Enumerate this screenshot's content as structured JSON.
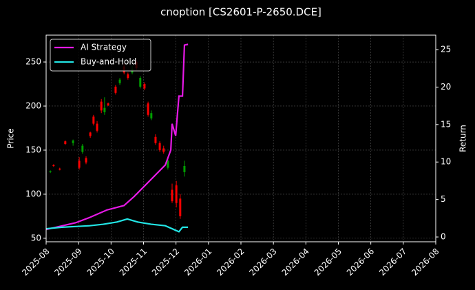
{
  "chart_data": {
    "type": "candlestick",
    "title": "cnoption [CS2601-P-2650.DCE]",
    "y_label": "Price",
    "y2_label": "Return",
    "xlim": [
      0,
      12
    ],
    "xticks": [
      {
        "value": 0,
        "label": "2025-08"
      },
      {
        "value": 1,
        "label": "2025-09"
      },
      {
        "value": 2,
        "label": "2025-10"
      },
      {
        "value": 3,
        "label": "2025-11"
      },
      {
        "value": 4,
        "label": "2025-12"
      },
      {
        "value": 5,
        "label": "2026-01"
      },
      {
        "value": 6,
        "label": "2026-02"
      },
      {
        "value": 7,
        "label": "2026-03"
      },
      {
        "value": 8,
        "label": "2026-04"
      },
      {
        "value": 9,
        "label": "2026-05"
      },
      {
        "value": 10,
        "label": "2026-06"
      },
      {
        "value": 11,
        "label": "2026-07"
      },
      {
        "value": 12,
        "label": "2026-08"
      }
    ],
    "ylim": [
      46,
      280.5
    ],
    "yticks": [
      50,
      100,
      150,
      200,
      250
    ],
    "y2lim": [
      -0.64,
      26.93
    ],
    "y2ticks": [
      0,
      5,
      10,
      15,
      20,
      25
    ],
    "grid": true,
    "legend": "upper left",
    "candles": {
      "up_color": "#00a000",
      "down_color": "#ff0000",
      "x": [
        0.13,
        0.23,
        0.42,
        0.59,
        0.83,
        1.02,
        1.12,
        1.23,
        1.36,
        1.46,
        1.57,
        1.7,
        1.8,
        1.91,
        2.14,
        2.27,
        2.4,
        2.52,
        2.65,
        2.78,
        2.9,
        3.03,
        3.14,
        3.24,
        3.37,
        3.5,
        3.62,
        3.75,
        3.88,
        4.01,
        4.13,
        4.26
      ],
      "open": [
        125,
        133,
        129,
        160,
        158,
        138,
        148,
        141,
        170,
        188,
        180,
        205,
        193,
        203,
        222,
        226,
        245,
        236,
        238,
        250,
        222,
        225,
        203,
        186,
        165,
        158,
        152,
        130,
        105,
        110,
        95,
        125
      ],
      "high": [
        127,
        134,
        130,
        161,
        162,
        142,
        157,
        143,
        171,
        190,
        183,
        208,
        210,
        204,
        224,
        232,
        248,
        238,
        246,
        252,
        234,
        227,
        205,
        195,
        168,
        160,
        155,
        140,
        112,
        115,
        100,
        138
      ],
      "low": [
        124,
        131,
        127,
        156,
        155,
        128,
        146,
        134,
        164,
        178,
        170,
        192,
        190,
        200,
        213,
        224,
        236,
        230,
        236,
        241,
        220,
        218,
        188,
        184,
        156,
        148,
        146,
        128,
        90,
        85,
        72,
        120
      ],
      "close": [
        126,
        132,
        128,
        157,
        161,
        130,
        155,
        136,
        166,
        180,
        172,
        195,
        198,
        201,
        215,
        230,
        238,
        232,
        242,
        243,
        232,
        220,
        190,
        192,
        158,
        150,
        148,
        138,
        92,
        90,
        75,
        132
      ]
    },
    "series": [
      {
        "name": "AI Strategy",
        "color": "#e619e6",
        "axis": "y2",
        "x": [
          0,
          0.91,
          1.34,
          1.87,
          2.4,
          2.71,
          3.03,
          3.35,
          3.67,
          3.84,
          3.88,
          3.99,
          4.09,
          4.2,
          4.26,
          4.37
        ],
        "values": [
          1.0,
          1.9,
          2.6,
          3.6,
          4.2,
          5.4,
          6.8,
          8.2,
          9.6,
          11.6,
          15.1,
          13.5,
          18.8,
          18.8,
          25.6,
          25.7
        ]
      },
      {
        "name": "Buy-and-Hold",
        "color": "#22e5e5",
        "axis": "y2",
        "x": [
          0,
          0.49,
          0.91,
          1.34,
          1.76,
          2.18,
          2.5,
          2.82,
          3.24,
          3.67,
          4.09,
          4.2,
          4.37
        ],
        "values": [
          1.1,
          1.3,
          1.4,
          1.5,
          1.7,
          2.0,
          2.4,
          2.0,
          1.7,
          1.5,
          0.7,
          1.3,
          1.3
        ]
      }
    ]
  }
}
